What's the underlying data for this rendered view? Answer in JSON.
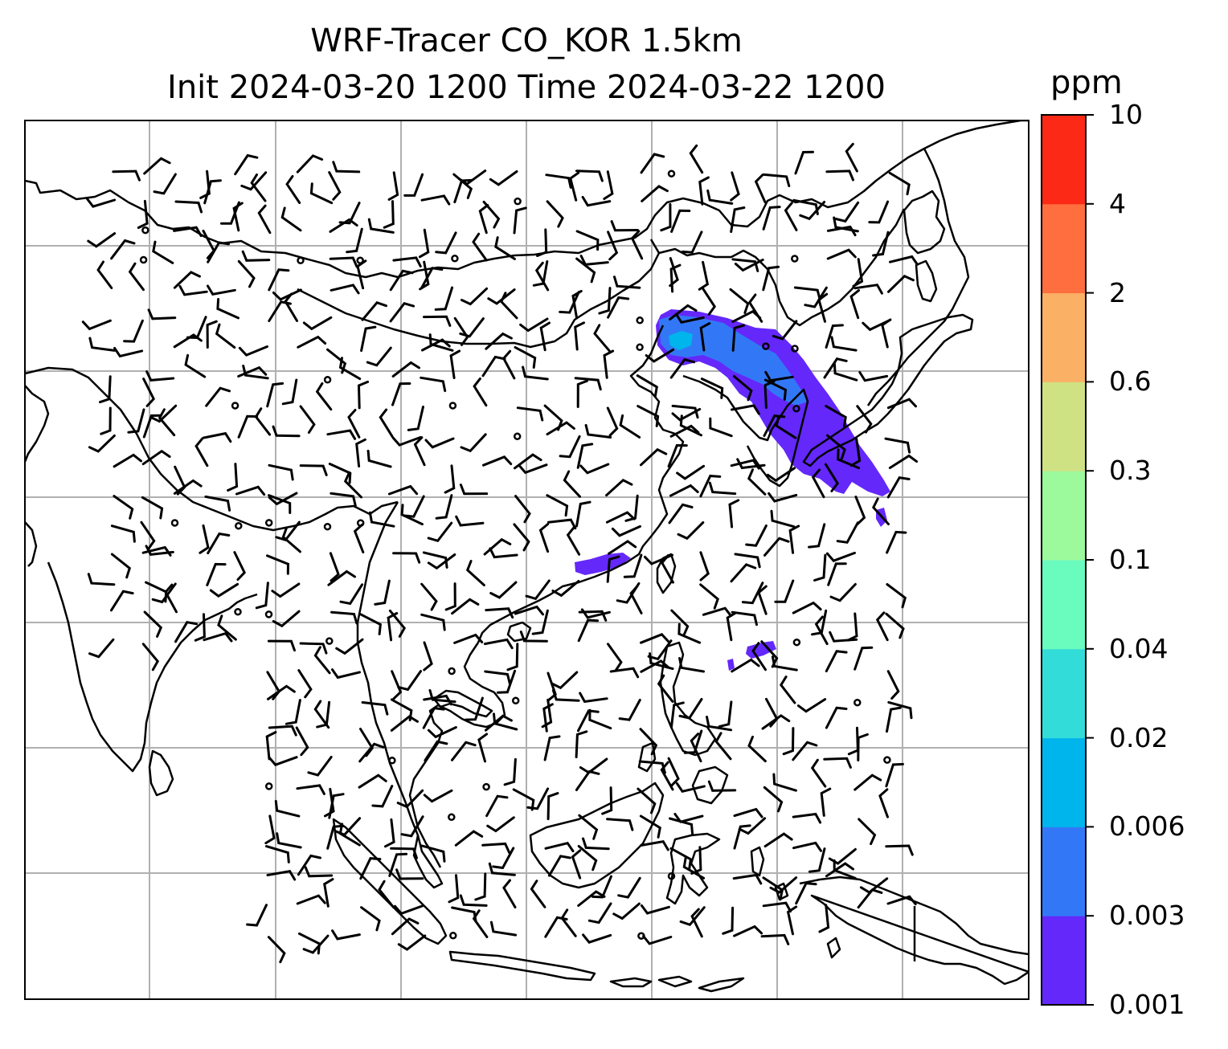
{
  "title": {
    "line1": "WRF-Tracer CO_KOR 1.5km",
    "line2": "Init 2024-03-20 1200 Time 2024-03-22 1200"
  },
  "colorbar": {
    "unit": "ppm",
    "levels": [
      "0.001",
      "0.003",
      "0.006",
      "0.02",
      "0.04",
      "0.1",
      "0.3",
      "0.6",
      "2",
      "4",
      "10"
    ],
    "colors": [
      "#6428fa",
      "#3278f6",
      "#00b4ec",
      "#32dcd8",
      "#6afbbf",
      "#9cf99c",
      "#cee284",
      "#fbb165",
      "#ff6e3e",
      "#fc2916"
    ]
  },
  "map": {
    "gridlines": true,
    "land_color": "#ffffff",
    "coast_color": "#000000",
    "grid_color": "#b0b0b0"
  },
  "plume": {
    "source_region": "Korea",
    "main_color": "#6428fa",
    "inner_color": "#3278f6",
    "core_color": "#00b4ec"
  }
}
